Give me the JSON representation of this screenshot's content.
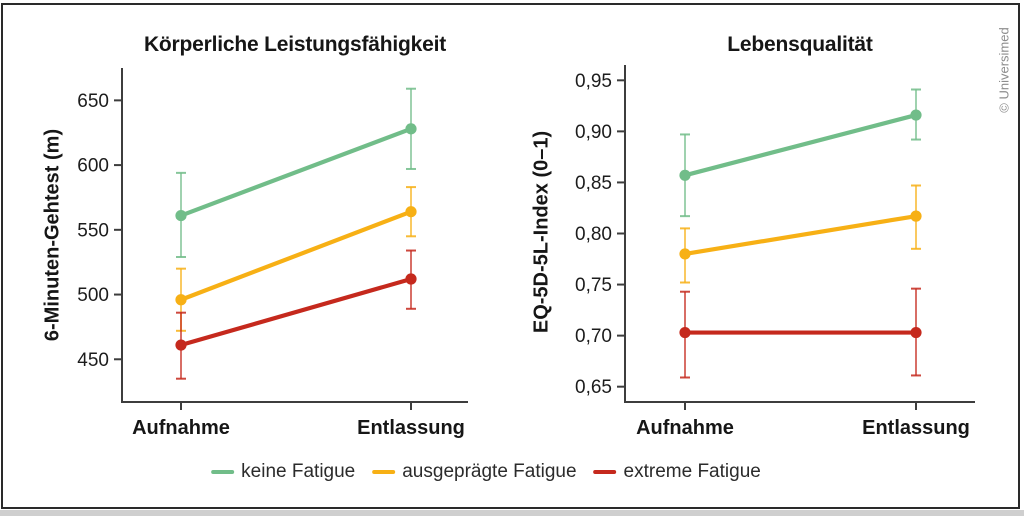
{
  "frame": {
    "copyright": "© Universimed"
  },
  "legend": {
    "position": "bottom",
    "items": [
      {
        "label": "keine Fatigue",
        "color": "#71bd89"
      },
      {
        "label": "ausgeprägte Fatigue",
        "color": "#f7b015"
      },
      {
        "label": "extreme Fatigue",
        "color": "#c5291d"
      }
    ]
  },
  "chart_data": [
    {
      "type": "line",
      "title": "Körperliche Leistungsfähigkeit",
      "ylabel": "6-Minuten-Gehtest (m)",
      "xlabel": "",
      "categories": [
        "Aufnahme",
        "Entlassung"
      ],
      "yticks": [
        450,
        500,
        550,
        600,
        650
      ],
      "ytick_labels": [
        "450",
        "500",
        "550",
        "600",
        "650"
      ],
      "ylim": [
        417,
        675
      ],
      "grid": false,
      "error_bars": true,
      "series": [
        {
          "name": "keine Fatigue",
          "color": "#71bd89",
          "values": [
            561,
            628
          ],
          "err_low": [
            529,
            597
          ],
          "err_high": [
            594,
            659
          ]
        },
        {
          "name": "ausgeprägte Fatigue",
          "color": "#f7b015",
          "values": [
            496,
            564
          ],
          "err_low": [
            472,
            545
          ],
          "err_high": [
            520,
            583
          ]
        },
        {
          "name": "extreme Fatigue",
          "color": "#c5291d",
          "values": [
            461,
            512
          ],
          "err_low": [
            435,
            489
          ],
          "err_high": [
            486,
            534
          ]
        }
      ]
    },
    {
      "type": "line",
      "title": "Lebensqualität",
      "ylabel": "EQ-5D-5L-Index (0–1)",
      "xlabel": "",
      "categories": [
        "Aufnahme",
        "Entlassung"
      ],
      "yticks": [
        0.65,
        0.7,
        0.75,
        0.8,
        0.85,
        0.9,
        0.95
      ],
      "ytick_labels": [
        "0,65",
        "0,70",
        "0,75",
        "0,80",
        "0,85",
        "0,90",
        "0,95"
      ],
      "ylim": [
        0.635,
        0.965
      ],
      "grid": false,
      "error_bars": true,
      "series": [
        {
          "name": "keine Fatigue",
          "color": "#71bd89",
          "values": [
            0.857,
            0.916
          ],
          "err_low": [
            0.817,
            0.892
          ],
          "err_high": [
            0.897,
            0.941
          ]
        },
        {
          "name": "ausgeprägte Fatigue",
          "color": "#f7b015",
          "values": [
            0.78,
            0.817
          ],
          "err_low": [
            0.752,
            0.785
          ],
          "err_high": [
            0.805,
            0.847
          ]
        },
        {
          "name": "extreme Fatigue",
          "color": "#c5291d",
          "values": [
            0.703,
            0.703
          ],
          "err_low": [
            0.659,
            0.661
          ],
          "err_high": [
            0.743,
            0.746
          ]
        }
      ]
    }
  ]
}
